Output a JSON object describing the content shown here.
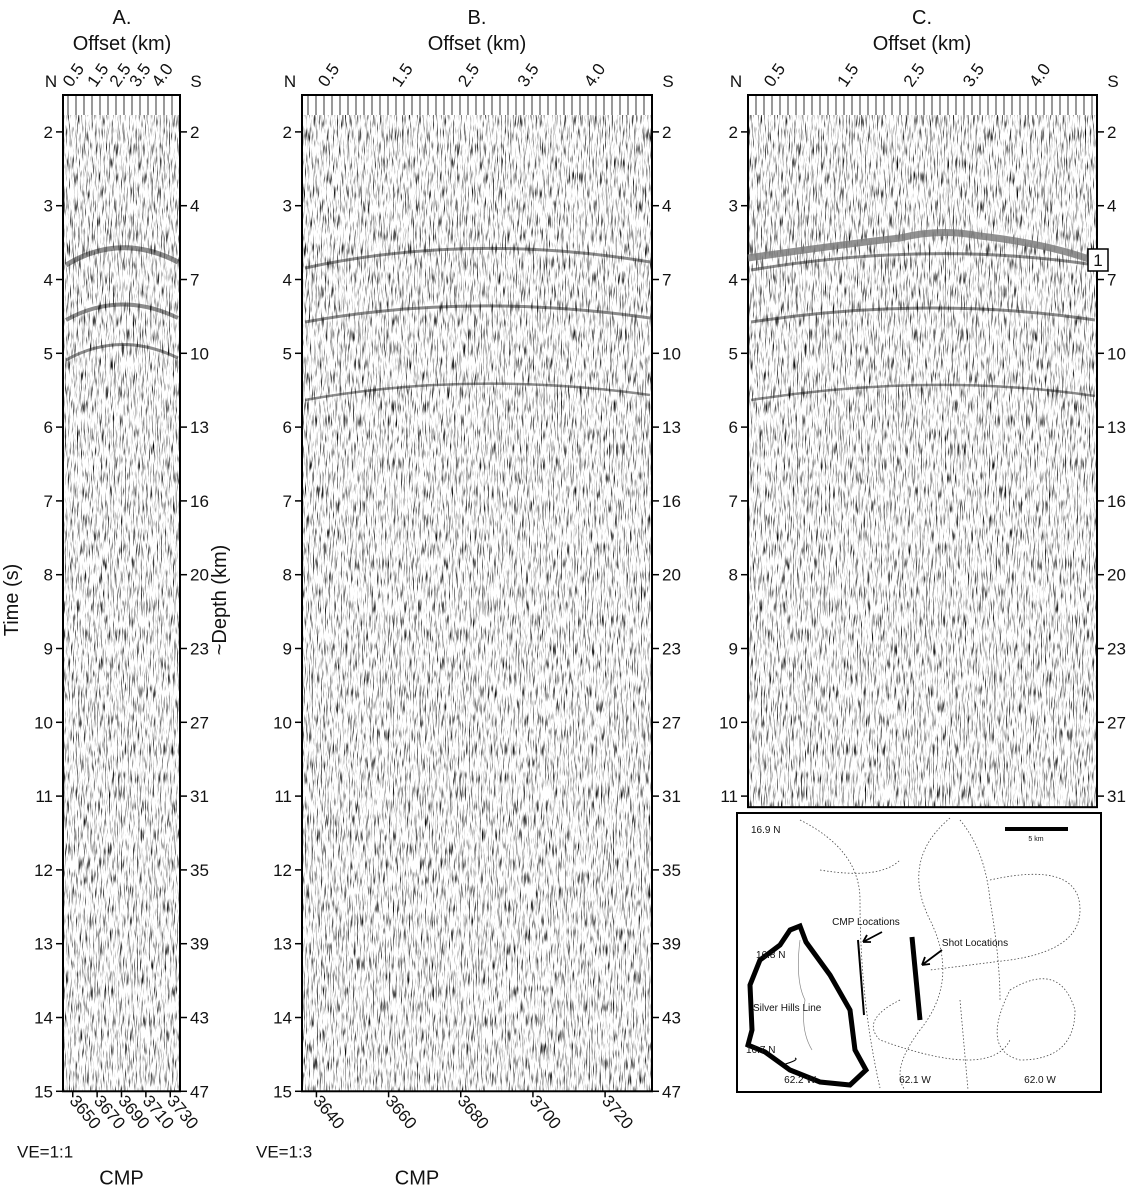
{
  "time_title": "Time (s)",
  "depth_title": "~Depth (km)",
  "panels": [
    {
      "label": "A.",
      "offset_title": "Offset (km)",
      "north": "N",
      "south": "S",
      "offset_labels": [
        "0.5",
        "1.5",
        "2.5",
        "3.5",
        "4.0"
      ],
      "ylim": [
        1.5,
        15
      ],
      "yticks": [
        2,
        3,
        4,
        5,
        6,
        7,
        8,
        9,
        10,
        11,
        12,
        13,
        14,
        15
      ],
      "depth_ticks": [
        2,
        4,
        7,
        10,
        13,
        16,
        20,
        23,
        27,
        31,
        35,
        39,
        43,
        47
      ],
      "cmp_lim": [
        3642,
        3738
      ],
      "cmp_ticks": [
        3650,
        3670,
        3690,
        3710,
        3730
      ],
      "ve": "VE=1:1",
      "cmp_title": "CMP"
    },
    {
      "label": "B.",
      "offset_title": "Offset (km)",
      "north": "N",
      "south": "S",
      "offset_labels": [
        "0.5",
        "1.5",
        "2.5",
        "3.5",
        "4.0"
      ],
      "ylim": [
        1.5,
        15
      ],
      "yticks": [
        2,
        3,
        4,
        5,
        6,
        7,
        8,
        9,
        10,
        11,
        12,
        13,
        14,
        15
      ],
      "depth_ticks": [
        2,
        4,
        7,
        10,
        13,
        16,
        20,
        23,
        27,
        31,
        35,
        39,
        43,
        47
      ],
      "cmp_lim": [
        3636,
        3733
      ],
      "cmp_ticks": [
        3640,
        3660,
        3680,
        3700,
        3720
      ],
      "ve": "VE=1:3",
      "cmp_title": "CMP"
    },
    {
      "label": "C.",
      "offset_title": "Offset (km)",
      "north": "N",
      "south": "S",
      "offset_labels": [
        "0.5",
        "1.5",
        "2.5",
        "3.5",
        "4.0"
      ],
      "ylim": [
        1.5,
        11.15
      ],
      "yticks": [
        2,
        3,
        4,
        5,
        6,
        7,
        8,
        9,
        10,
        11
      ],
      "depth_ticks": [
        2,
        4,
        7,
        10,
        13,
        16,
        20,
        23,
        27,
        31
      ],
      "horizon_label": "1"
    }
  ],
  "map": {
    "lat_labels": [
      "16.9 N",
      "16.8 N",
      "16.7 N"
    ],
    "lon_labels": [
      "62.2 W",
      "62.1 W",
      "62.0 W"
    ],
    "scale": "5 km",
    "cmp": "CMP Locations",
    "shot": "Shot Locations",
    "line": "Silver Hills Line"
  }
}
